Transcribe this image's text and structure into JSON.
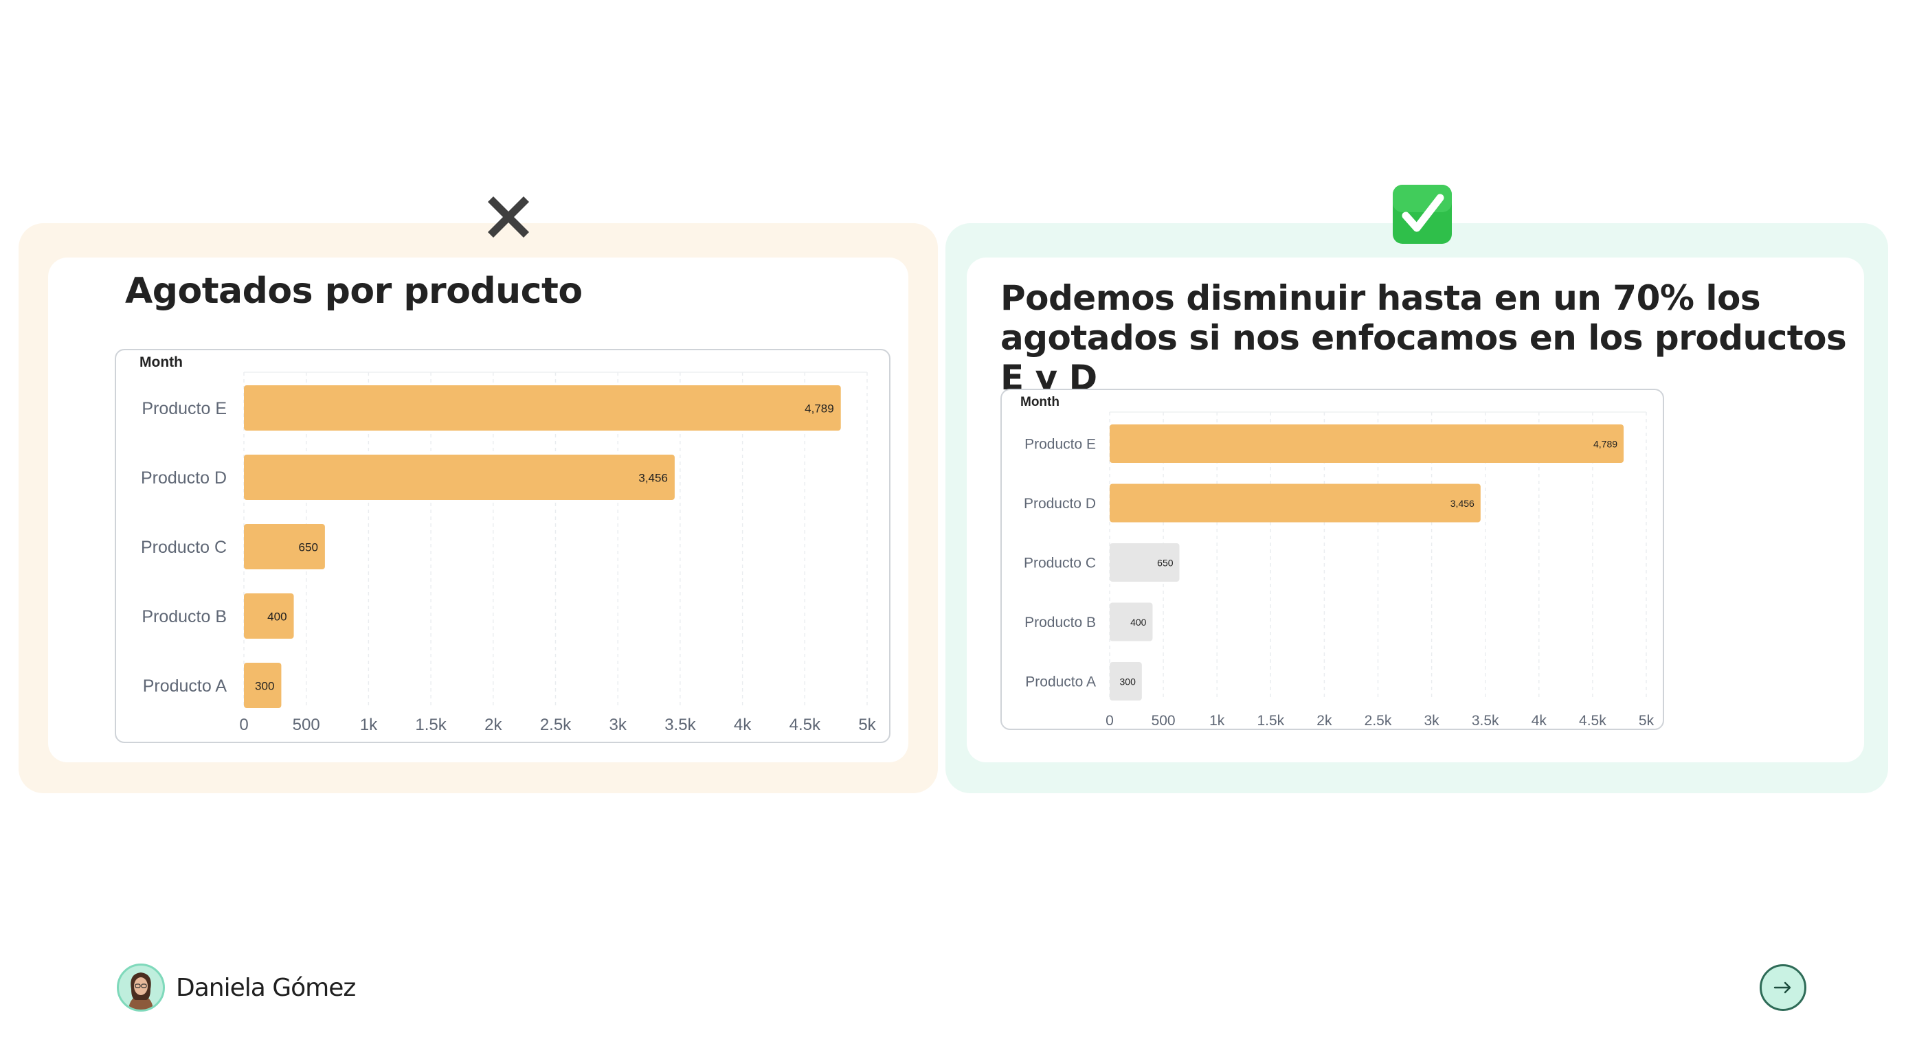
{
  "left": {
    "marker_icon": "cross-mark-icon",
    "title": "Agotados por producto",
    "chart_data": {
      "type": "bar",
      "orientation": "horizontal",
      "axis_title": "Month",
      "categories": [
        "Producto E",
        "Producto D",
        "Producto C",
        "Producto B",
        "Producto A"
      ],
      "values": [
        4789,
        3456,
        650,
        400,
        300
      ],
      "data_labels": [
        "4,789",
        "3,456",
        "650",
        "400",
        "300"
      ],
      "xlim": [
        0,
        5000
      ],
      "xticks": [
        0,
        500,
        1000,
        1500,
        2000,
        2500,
        3000,
        3500,
        4000,
        4500,
        5000
      ],
      "xtick_labels": [
        "0",
        "500",
        "1k",
        "1.5k",
        "2k",
        "2.5k",
        "3k",
        "3.5k",
        "4k",
        "4.5k",
        "5k"
      ],
      "grid": true,
      "colors": [
        "#f3bb6a",
        "#f3bb6a",
        "#f3bb6a",
        "#f3bb6a",
        "#f3bb6a"
      ]
    }
  },
  "right": {
    "marker_icon": "check-mark-button-icon",
    "title": "Podemos disminuir hasta en un 70% los agotados si nos enfocamos en los productos E y D",
    "chart_data": {
      "type": "bar",
      "orientation": "horizontal",
      "axis_title": "Month",
      "categories": [
        "Producto E",
        "Producto D",
        "Producto C",
        "Producto B",
        "Producto A"
      ],
      "values": [
        4789,
        3456,
        650,
        400,
        300
      ],
      "data_labels": [
        "4,789",
        "3,456",
        "650",
        "400",
        "300"
      ],
      "xlim": [
        0,
        5000
      ],
      "xticks": [
        0,
        500,
        1000,
        1500,
        2000,
        2500,
        3000,
        3500,
        4000,
        4500,
        5000
      ],
      "xtick_labels": [
        "0",
        "500",
        "1k",
        "1.5k",
        "2k",
        "2.5k",
        "3k",
        "3.5k",
        "4k",
        "4.5k",
        "5k"
      ],
      "grid": true,
      "colors": [
        "#f3bb6a",
        "#f3bb6a",
        "#e6e6e6",
        "#e6e6e6",
        "#e6e6e6"
      ]
    }
  },
  "footer": {
    "author_name": "Daniela Gómez",
    "avatar_icon": "author-avatar",
    "next_icon": "arrow-right-icon"
  },
  "colors": {
    "highlight_bar": "#f3bb6a",
    "muted_bar": "#e6e6e6",
    "left_panel": "#fdf5e9",
    "right_panel": "#e9f9f3",
    "check_green": "#2fc04a"
  }
}
